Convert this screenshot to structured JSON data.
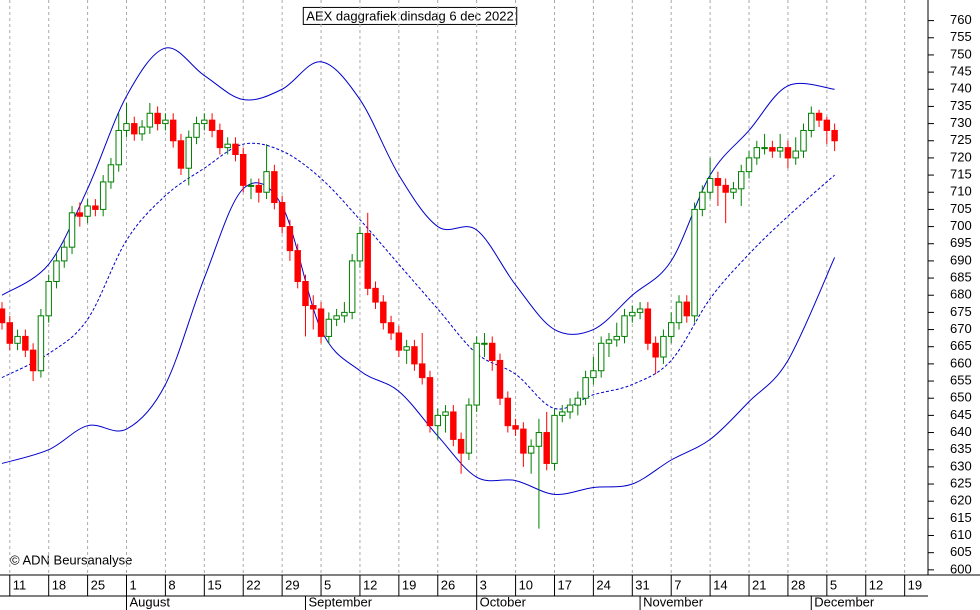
{
  "chart_data": {
    "type": "candlestick",
    "title": "AEX daggrafiek dinsdag 6 dec 2022",
    "copyright": "© ADN Beursanalyse",
    "x": [
      "2022-07-08",
      "2022-07-11",
      "2022-07-12",
      "2022-07-13",
      "2022-07-14",
      "2022-07-15",
      "2022-07-18",
      "2022-07-19",
      "2022-07-20",
      "2022-07-21",
      "2022-07-22",
      "2022-07-25",
      "2022-07-26",
      "2022-07-27",
      "2022-07-28",
      "2022-07-29",
      "2022-08-01",
      "2022-08-02",
      "2022-08-03",
      "2022-08-04",
      "2022-08-05",
      "2022-08-08",
      "2022-08-09",
      "2022-08-10",
      "2022-08-11",
      "2022-08-12",
      "2022-08-15",
      "2022-08-16",
      "2022-08-17",
      "2022-08-18",
      "2022-08-19",
      "2022-08-22",
      "2022-08-23",
      "2022-08-24",
      "2022-08-25",
      "2022-08-26",
      "2022-08-29",
      "2022-08-30",
      "2022-08-31",
      "2022-09-01",
      "2022-09-02",
      "2022-09-05",
      "2022-09-06",
      "2022-09-07",
      "2022-09-08",
      "2022-09-09",
      "2022-09-12",
      "2022-09-13",
      "2022-09-14",
      "2022-09-15",
      "2022-09-16",
      "2022-09-19",
      "2022-09-20",
      "2022-09-21",
      "2022-09-22",
      "2022-09-23",
      "2022-09-26",
      "2022-09-27",
      "2022-09-28",
      "2022-09-29",
      "2022-09-30",
      "2022-10-03",
      "2022-10-04",
      "2022-10-05",
      "2022-10-06",
      "2022-10-07",
      "2022-10-10",
      "2022-10-11",
      "2022-10-12",
      "2022-10-13",
      "2022-10-14",
      "2022-10-17",
      "2022-10-18",
      "2022-10-19",
      "2022-10-20",
      "2022-10-21",
      "2022-10-24",
      "2022-10-25",
      "2022-10-26",
      "2022-10-27",
      "2022-10-28",
      "2022-10-31",
      "2022-11-01",
      "2022-11-02",
      "2022-11-03",
      "2022-11-04",
      "2022-11-07",
      "2022-11-08",
      "2022-11-09",
      "2022-11-10",
      "2022-11-11",
      "2022-11-14",
      "2022-11-15",
      "2022-11-16",
      "2022-11-17",
      "2022-11-18",
      "2022-11-21",
      "2022-11-22",
      "2022-11-23",
      "2022-11-24",
      "2022-11-25",
      "2022-11-28",
      "2022-11-29",
      "2022-11-30",
      "2022-12-01",
      "2022-12-02",
      "2022-12-05",
      "2022-12-06"
    ],
    "open": [
      676,
      672,
      666,
      668,
      664,
      658,
      674,
      684,
      690,
      694,
      704,
      703,
      706,
      705,
      713,
      718,
      728,
      730,
      727,
      729,
      733,
      730,
      731,
      725,
      717,
      726,
      730,
      731,
      728,
      723,
      724,
      721,
      712,
      712,
      710,
      716,
      707,
      700,
      693,
      684,
      677,
      676,
      668,
      673,
      674,
      675,
      690,
      698,
      682,
      678,
      672,
      669,
      664,
      665,
      660,
      656,
      642,
      645,
      646,
      638,
      634,
      648,
      666,
      666,
      661,
      650,
      642,
      641,
      634,
      636,
      640,
      631,
      645,
      646,
      648,
      650,
      656,
      658,
      666,
      667,
      668,
      674,
      675,
      676,
      666,
      662,
      668,
      672,
      678,
      674,
      705,
      710,
      714,
      712,
      710,
      711,
      716,
      720,
      723,
      723,
      722,
      723,
      720,
      722,
      728,
      733,
      731,
      728
    ],
    "high": [
      678,
      674,
      670,
      670,
      666,
      676,
      686,
      692,
      696,
      706,
      707,
      708,
      708,
      715,
      720,
      733,
      736,
      732,
      731,
      736,
      735,
      733,
      733,
      727,
      728,
      732,
      733,
      733,
      730,
      726,
      726,
      723,
      714,
      714,
      724,
      718,
      709,
      702,
      695,
      686,
      680,
      678,
      675,
      676,
      678,
      692,
      700,
      704,
      684,
      680,
      674,
      671,
      667,
      667,
      669,
      658,
      647,
      648,
      648,
      640,
      650,
      668,
      669,
      668,
      663,
      652,
      644,
      643,
      638,
      644,
      646,
      647,
      648,
      650,
      652,
      658,
      662,
      668,
      669,
      672,
      676,
      677,
      678,
      678,
      668,
      670,
      675,
      680,
      680,
      707,
      712,
      720,
      716,
      714,
      713,
      718,
      722,
      725,
      727,
      725,
      727,
      725,
      726,
      730,
      735,
      734,
      732,
      730
    ],
    "low": [
      670,
      664,
      664,
      662,
      655,
      656,
      672,
      682,
      688,
      692,
      700,
      701,
      703,
      703,
      711,
      716,
      726,
      725,
      725,
      727,
      728,
      728,
      723,
      715,
      712,
      724,
      728,
      726,
      721,
      721,
      719,
      710,
      708,
      707,
      708,
      705,
      698,
      690,
      682,
      668,
      670,
      666,
      666,
      671,
      672,
      673,
      688,
      680,
      676,
      670,
      667,
      662,
      660,
      658,
      654,
      640,
      638,
      640,
      636,
      628,
      632,
      646,
      662,
      658,
      648,
      640,
      639,
      630,
      628,
      612,
      629,
      629,
      643,
      644,
      645,
      648,
      654,
      656,
      662,
      665,
      666,
      672,
      673,
      664,
      657,
      660,
      666,
      670,
      672,
      672,
      703,
      708,
      706,
      701,
      708,
      706,
      714,
      718,
      721,
      720,
      720,
      717,
      718,
      720,
      726,
      729,
      724,
      722
    ],
    "close": [
      672,
      666,
      668,
      664,
      658,
      674,
      684,
      690,
      694,
      704,
      703,
      706,
      705,
      713,
      718,
      728,
      730,
      727,
      729,
      733,
      730,
      731,
      725,
      717,
      726,
      730,
      731,
      728,
      723,
      724,
      721,
      712,
      712,
      710,
      716,
      707,
      700,
      693,
      684,
      677,
      676,
      668,
      673,
      674,
      675,
      690,
      698,
      682,
      678,
      672,
      669,
      664,
      665,
      660,
      656,
      642,
      645,
      646,
      638,
      634,
      648,
      666,
      666,
      661,
      650,
      642,
      641,
      634,
      636,
      640,
      631,
      645,
      646,
      648,
      650,
      656,
      658,
      666,
      667,
      668,
      674,
      675,
      676,
      666,
      662,
      668,
      672,
      678,
      674,
      705,
      710,
      714,
      712,
      710,
      711,
      716,
      720,
      723,
      723,
      722,
      723,
      720,
      722,
      728,
      733,
      731,
      728,
      725
    ],
    "up_color": "#008000",
    "down_color": "#ff0000",
    "bands": {
      "color": "#0000cc",
      "x": [
        "2022-07-08",
        "2022-07-18",
        "2022-07-25",
        "2022-08-01",
        "2022-08-08",
        "2022-08-15",
        "2022-08-22",
        "2022-08-29",
        "2022-09-05",
        "2022-09-12",
        "2022-09-19",
        "2022-09-26",
        "2022-10-03",
        "2022-10-10",
        "2022-10-17",
        "2022-10-24",
        "2022-10-31",
        "2022-11-07",
        "2022-11-14",
        "2022-11-21",
        "2022-11-28",
        "2022-12-06"
      ],
      "upper": [
        680,
        689,
        711,
        738,
        752,
        744,
        737,
        740,
        748,
        737,
        715,
        700,
        699,
        683,
        670,
        670,
        680,
        690,
        715,
        728,
        741,
        740
      ],
      "middle": [
        656,
        663,
        673,
        696,
        709,
        717,
        724,
        722,
        714,
        702,
        689,
        676,
        663,
        657,
        647,
        651,
        654,
        661,
        679,
        692,
        703,
        715
      ],
      "lower": [
        631,
        635,
        642,
        641,
        654,
        685,
        711,
        706,
        670,
        658,
        652,
        639,
        627,
        626,
        622,
        624,
        625,
        632,
        638,
        649,
        661,
        691
      ]
    },
    "xlim": [
      "2022-07-08",
      "2022-12-22"
    ],
    "ylim": [
      598.5,
      766
    ],
    "yticks": [
      600,
      605,
      610,
      615,
      620,
      625,
      630,
      635,
      640,
      645,
      650,
      655,
      660,
      665,
      670,
      675,
      680,
      685,
      690,
      695,
      700,
      705,
      710,
      715,
      720,
      725,
      730,
      735,
      740,
      745,
      750,
      755,
      760
    ],
    "xticks": [
      {
        "value": "2022-07-11",
        "label": "11"
      },
      {
        "value": "2022-07-18",
        "label": "18"
      },
      {
        "value": "2022-07-25",
        "label": "25"
      },
      {
        "value": "2022-08-01",
        "label": "1"
      },
      {
        "value": "2022-08-08",
        "label": "8"
      },
      {
        "value": "2022-08-15",
        "label": "15"
      },
      {
        "value": "2022-08-22",
        "label": "22"
      },
      {
        "value": "2022-08-29",
        "label": "29"
      },
      {
        "value": "2022-09-05",
        "label": "5"
      },
      {
        "value": "2022-09-12",
        "label": "12"
      },
      {
        "value": "2022-09-19",
        "label": "19"
      },
      {
        "value": "2022-09-26",
        "label": "26"
      },
      {
        "value": "2022-10-03",
        "label": "3"
      },
      {
        "value": "2022-10-10",
        "label": "10"
      },
      {
        "value": "2022-10-17",
        "label": "17"
      },
      {
        "value": "2022-10-24",
        "label": "24"
      },
      {
        "value": "2022-10-31",
        "label": "31"
      },
      {
        "value": "2022-11-07",
        "label": "7"
      },
      {
        "value": "2022-11-14",
        "label": "14"
      },
      {
        "value": "2022-11-21",
        "label": "21"
      },
      {
        "value": "2022-11-28",
        "label": "28"
      },
      {
        "value": "2022-12-05",
        "label": "5"
      },
      {
        "value": "2022-12-12",
        "label": "12"
      },
      {
        "value": "2022-12-19",
        "label": "19"
      }
    ],
    "months": [
      {
        "value": "2022-08-01",
        "label": "August"
      },
      {
        "value": "2022-09-01",
        "label": "September"
      },
      {
        "value": "2022-10-03",
        "label": "October"
      },
      {
        "value": "2022-11-01",
        "label": "November"
      },
      {
        "value": "2022-12-01",
        "label": "December"
      }
    ],
    "grid": true
  }
}
